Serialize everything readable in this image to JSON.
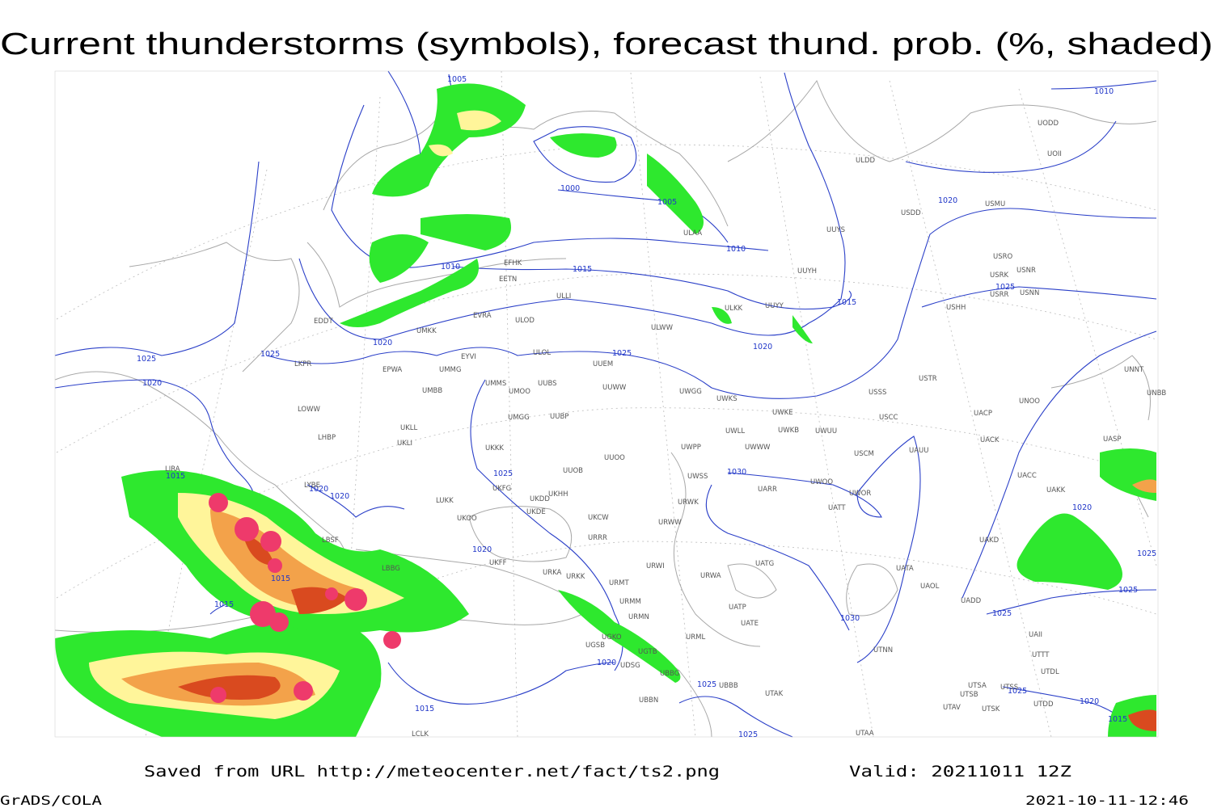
{
  "header": {
    "title": "Current thunderstorms (symbols), forecast thund. prob. (%, shaded)"
  },
  "footer": {
    "saved": "Saved from URL http://meteocenter.net/fact/ts2.png",
    "valid": "Valid: 20211011 12Z",
    "software": "GrADS/COLA",
    "timestamp": "2021-10-11-12:46"
  },
  "map": {
    "isobar_labels": [
      1005,
      1000,
      1005,
      1010,
      1010,
      1015,
      1015,
      1020,
      1020,
      1020,
      1025,
      1025,
      1020,
      1025,
      1025,
      1010,
      1030,
      1025,
      1015,
      1020,
      1020,
      1020,
      1015,
      1015,
      1030,
      1020,
      1025,
      1015,
      1025,
      1020,
      1025,
      1025,
      1025,
      1020,
      1015,
      1025
    ],
    "stations": [
      "ULDD",
      "USDD",
      "USMU",
      "UOII",
      "UODD",
      "ULAA",
      "EFHK",
      "EETN",
      "ULLI",
      "ULKK",
      "UUYY",
      "UUYH",
      "ULWW",
      "UMKK",
      "EVRA",
      "ULOD",
      "EDDT",
      "EYVI",
      "ULOL",
      "UUEM",
      "EPWA",
      "UMMG",
      "LKPR",
      "UMBB",
      "UMMS",
      "UMOO",
      "UUBS",
      "UUWW",
      "UWGG",
      "UWKS",
      "UWKE",
      "UWKB",
      "UWUU",
      "USSS",
      "USTR",
      "USCC",
      "LOWW",
      "LHBP",
      "UKLL",
      "UKLI",
      "UMGG",
      "UUBP",
      "UWLL",
      "UWWW",
      "UWPP",
      "UKKK",
      "UUOO",
      "USCM",
      "UAUU",
      "UACK",
      "UASP",
      "UNOO",
      "UNNT",
      "UNBB",
      "LIRA",
      "UUOB",
      "LYBE",
      "UKFG",
      "LUKK",
      "UKHH",
      "UKDE",
      "UWSS",
      "UARR",
      "UWOO",
      "UWOR",
      "URWK",
      "UKOO",
      "UKCW",
      "URWW",
      "UATT",
      "UAKK",
      "UACC",
      "UAKD",
      "URRR",
      "LBSF",
      "UKFF",
      "URKA",
      "URKK",
      "URWI",
      "URWA",
      "UATG",
      "UATA",
      "UAOL",
      "UADD",
      "LBBG",
      "URMT",
      "URMM",
      "URMN",
      "UATP",
      "UATE",
      "URML",
      "UGKO",
      "UGTB",
      "UGSB",
      "UDSG",
      "UBBG",
      "UBBB",
      "UTAK",
      "UBBN",
      "UTNN",
      "UTSA",
      "UTSS",
      "UTSB",
      "UTAV",
      "UTSK",
      "UTDD",
      "UTDL",
      "UTTT",
      "UAII",
      "UTAA",
      "LCLK",
      "USHH",
      "USRR",
      "USNN",
      "USRK",
      "USNR",
      "USRO",
      "UUYS",
      "UACP",
      "UKDD"
    ]
  }
}
